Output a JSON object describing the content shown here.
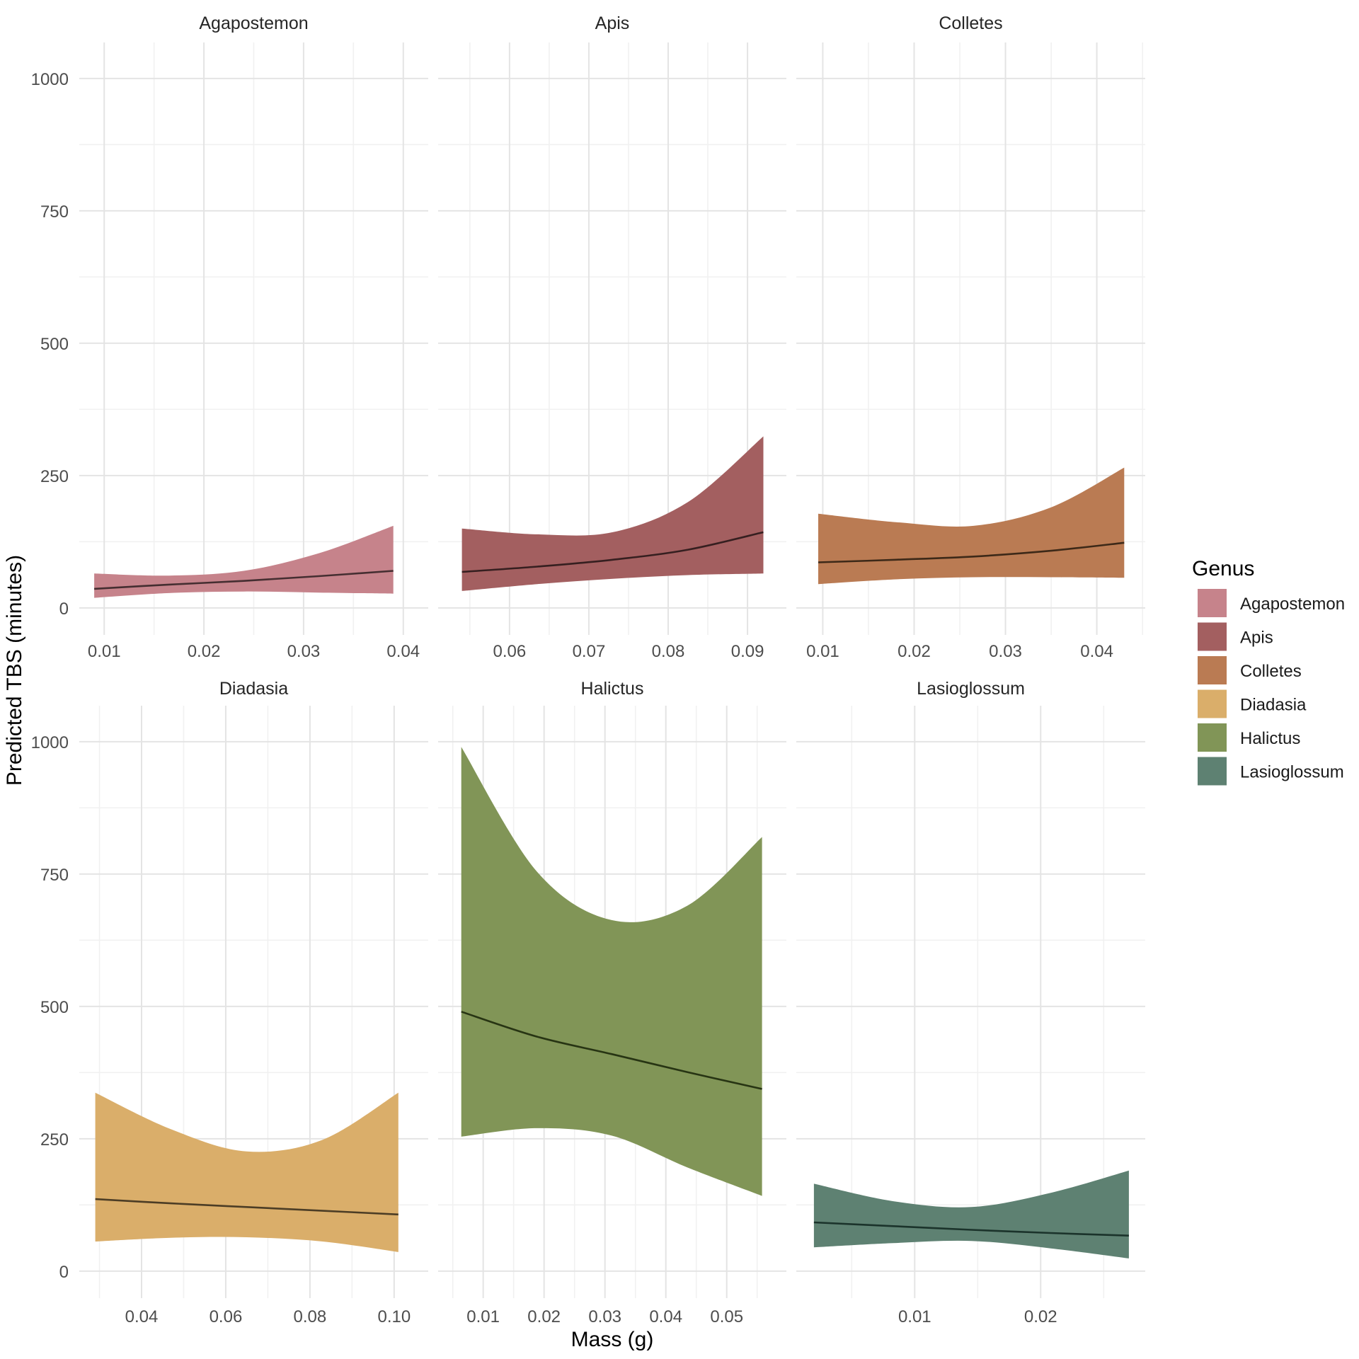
{
  "axes": {
    "x_title": "Mass (g)",
    "y_title": "Predicted TBS (minutes)",
    "y_ticks": [
      0,
      250,
      500,
      750,
      1000
    ],
    "y_minor_ticks": [
      125,
      375,
      625,
      875
    ],
    "y_domain": [
      -51,
      1068
    ]
  },
  "legend": {
    "title": "Genus",
    "entries": [
      {
        "label": "Agapostemon",
        "color": "#C6838B"
      },
      {
        "label": "Apis",
        "color": "#A35F60"
      },
      {
        "label": "Colletes",
        "color": "#BA7B53"
      },
      {
        "label": "Diadasia",
        "color": "#DAAE6A"
      },
      {
        "label": "Halictus",
        "color": "#819557"
      },
      {
        "label": "Lasioglossum",
        "color": "#5E8172"
      }
    ]
  },
  "chart_data": {
    "type": "area",
    "description": "Fitted lines with confidence ribbons of Predicted TBS (minutes) versus Mass (g), faceted by bee genus with free x scales",
    "grid": true,
    "legend_position": "right",
    "panels": [
      {
        "genus": "Agapostemon",
        "fill": "#C6838B",
        "line_color": "#452E31",
        "x_domain": [
          0.0075,
          0.0425
        ],
        "x_ticks": [
          {
            "v": 0.01,
            "label": "0.01"
          },
          {
            "v": 0.02,
            "label": "0.02"
          },
          {
            "v": 0.03,
            "label": "0.03"
          },
          {
            "v": 0.04,
            "label": "0.04"
          }
        ],
        "x": [
          0.009,
          0.0165,
          0.024,
          0.0315,
          0.039
        ],
        "lower": [
          19,
          28,
          31,
          29,
          27
        ],
        "fit": [
          36,
          44,
          51,
          60,
          70
        ],
        "upper": [
          65,
          61,
          70,
          103,
          155
        ]
      },
      {
        "genus": "Apis",
        "fill": "#A35F60",
        "line_color": "#361F20",
        "x_domain": [
          0.051,
          0.0949
        ],
        "x_ticks": [
          {
            "v": 0.06,
            "label": "0.06"
          },
          {
            "v": 0.07,
            "label": "0.07"
          },
          {
            "v": 0.08,
            "label": "0.08"
          },
          {
            "v": 0.09,
            "label": "0.09"
          }
        ],
        "x": [
          0.054,
          0.0635,
          0.073,
          0.0825,
          0.092
        ],
        "lower": [
          32,
          45,
          55,
          62,
          65
        ],
        "fit": [
          68,
          78,
          91,
          110,
          143
        ],
        "upper": [
          150,
          139,
          143,
          200,
          324
        ]
      },
      {
        "genus": "Colletes",
        "fill": "#BA7B53",
        "line_color": "#3D2918",
        "x_domain": [
          0.0071,
          0.0453
        ],
        "x_ticks": [
          {
            "v": 0.01,
            "label": "0.01"
          },
          {
            "v": 0.02,
            "label": "0.02"
          },
          {
            "v": 0.03,
            "label": "0.03"
          },
          {
            "v": 0.04,
            "label": "0.04"
          }
        ],
        "x": [
          0.0095,
          0.018,
          0.0265,
          0.035,
          0.043
        ],
        "lower": [
          45,
          54,
          58,
          58,
          57
        ],
        "fit": [
          86,
          91,
          97,
          108,
          123
        ],
        "upper": [
          178,
          162,
          155,
          190,
          265
        ]
      },
      {
        "genus": "Diadasia",
        "fill": "#DAAE6A",
        "line_color": "#4C3D25",
        "x_domain": [
          0.0252,
          0.1081
        ],
        "x_ticks": [
          {
            "v": 0.04,
            "label": "0.04"
          },
          {
            "v": 0.06,
            "label": "0.06"
          },
          {
            "v": 0.08,
            "label": "0.08"
          },
          {
            "v": 0.1,
            "label": "0.10"
          }
        ],
        "x": [
          0.029,
          0.047,
          0.065,
          0.083,
          0.101
        ],
        "lower": [
          56,
          63,
          64,
          56,
          36
        ],
        "fit": [
          136,
          128,
          121,
          114,
          107
        ],
        "upper": [
          337,
          268,
          226,
          248,
          337
        ]
      },
      {
        "genus": "Halictus",
        "fill": "#819557",
        "line_color": "#273413",
        "x_domain": [
          0.0026,
          0.0598
        ],
        "x_ticks": [
          {
            "v": 0.01,
            "label": "0.01"
          },
          {
            "v": 0.02,
            "label": "0.02"
          },
          {
            "v": 0.03,
            "label": "0.03"
          },
          {
            "v": 0.04,
            "label": "0.04"
          },
          {
            "v": 0.05,
            "label": "0.05"
          }
        ],
        "x": [
          0.0064,
          0.0188,
          0.0311,
          0.0435,
          0.0558
        ],
        "lower": [
          254,
          270,
          256,
          196,
          142
        ],
        "fit": [
          490,
          443,
          410,
          376,
          344
        ],
        "upper": [
          990,
          755,
          663,
          690,
          820
        ]
      },
      {
        "genus": "Lasioglossum",
        "fill": "#5E8172",
        "line_color": "#1B332B",
        "x_domain": [
          0.0006,
          0.0283
        ],
        "x_ticks": [
          {
            "v": 0.01,
            "label": "0.01"
          },
          {
            "v": 0.02,
            "label": "0.02"
          }
        ],
        "x": [
          0.002,
          0.0083,
          0.0145,
          0.0208,
          0.027
        ],
        "lower": [
          45,
          53,
          57,
          43,
          24
        ],
        "fit": [
          92,
          85,
          78,
          72,
          67
        ],
        "upper": [
          165,
          132,
          121,
          148,
          190
        ]
      }
    ]
  },
  "style": {
    "background": "#ffffff",
    "grid_major": "#e4e4e4",
    "grid_minor": "#f1f1f1",
    "tick_text": "#4d4d4d"
  }
}
